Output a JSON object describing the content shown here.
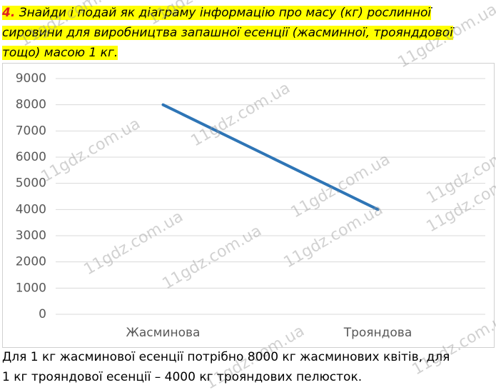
{
  "task": {
    "number": "4.",
    "lines": [
      "Знайди і подай як діаграму інформацію про масу (кг) рослинної",
      "сировини для виробництва запашної есенції (жасминної, троянддової",
      "тощо) масою 1 кг."
    ]
  },
  "chart_data": {
    "type": "line",
    "categories": [
      "Жасминова",
      "Трояндова"
    ],
    "series": [
      {
        "name": null,
        "color": "#2e75b6",
        "values": [
          8000,
          4000
        ]
      }
    ],
    "ylim": [
      0,
      9000
    ],
    "yticks": [
      0,
      1000,
      2000,
      3000,
      4000,
      5000,
      6000,
      7000,
      8000,
      9000
    ],
    "grid": true
  },
  "answer": {
    "lines": [
      "Для 1 кг жасминової есенції потрібно 8000 кг жасминових квітів, для",
      "1 кг трояндової есенції – 4000 кг трояндових пелюсток."
    ]
  },
  "watermark": "11gdz.com.ua"
}
